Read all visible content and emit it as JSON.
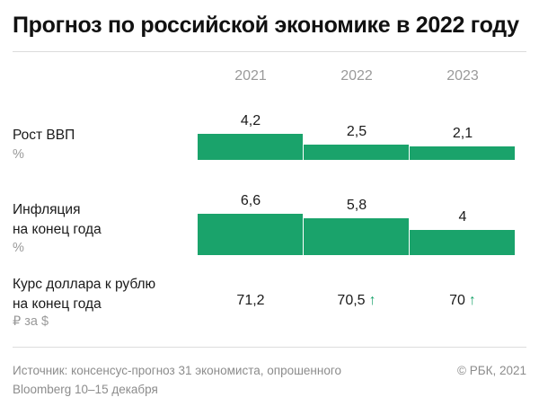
{
  "title": "Прогноз по российской экономике в 2022 году",
  "colors": {
    "bar": "#1aa36b",
    "arrow": "#1aa36b",
    "muted": "#9a9a9a"
  },
  "chart_data": {
    "type": "bar",
    "categories": [
      "2021",
      "2022",
      "2023"
    ],
    "series": [
      {
        "name": "Рост ВВП",
        "label_lines": [
          "Рост ВВП"
        ],
        "unit": "%",
        "values": [
          4.2,
          2.5,
          2.1
        ],
        "display": [
          "4,2",
          "2,5",
          "2,1"
        ]
      },
      {
        "name": "Инфляция на конец года",
        "label_lines": [
          "Инфляция",
          "на конец года"
        ],
        "unit": "%",
        "values": [
          6.6,
          5.8,
          4
        ],
        "display": [
          "6,6",
          "5,8",
          "4"
        ]
      }
    ],
    "rate": {
      "name": "Курс доллара к рублю на конец года",
      "label_lines": [
        "Курс доллара к рублю",
        "на конец года"
      ],
      "unit": "₽ за $",
      "values": [
        71.2,
        70.5,
        70
      ],
      "display": [
        "71,2",
        "70,5",
        "70"
      ],
      "arrows": [
        false,
        true,
        true
      ],
      "arrow_icon": "↑"
    }
  },
  "footer": {
    "source_lines": [
      "Источник:  консенсус-прогноз 31 экономиста, опрошенного",
      "Bloomberg 10–15 декабря"
    ],
    "credit": "© РБК, 2021"
  }
}
